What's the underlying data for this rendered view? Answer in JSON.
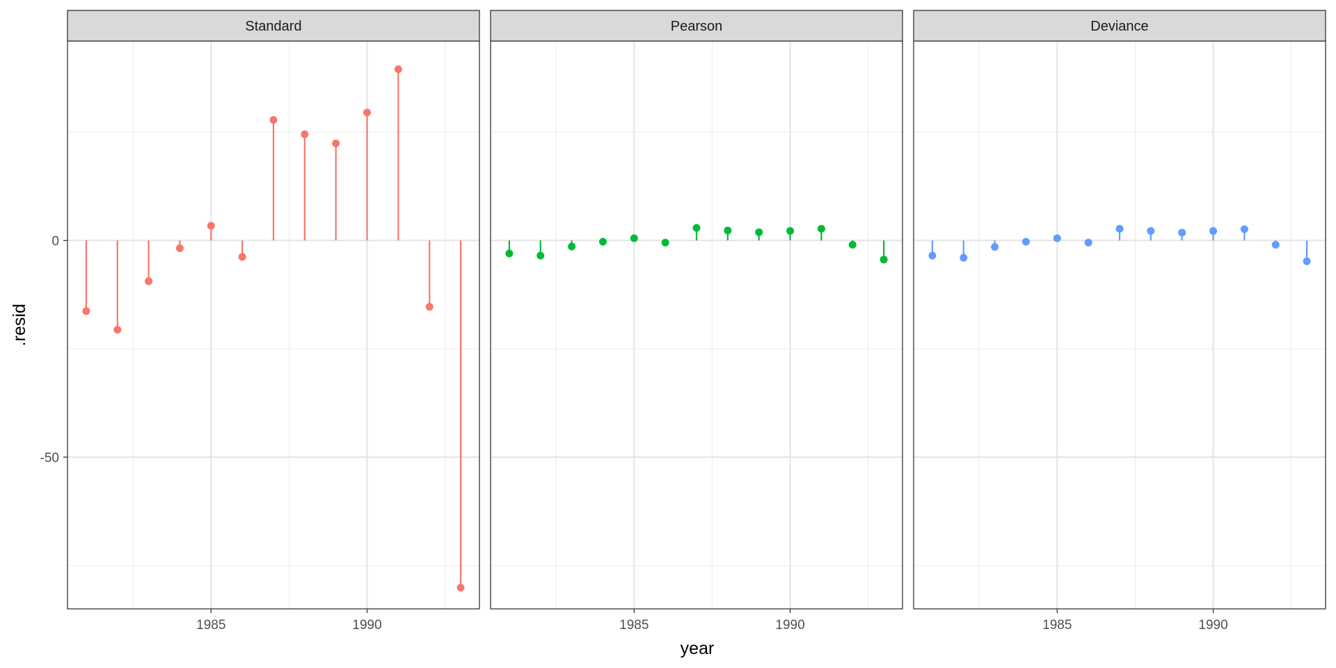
{
  "chart_data": {
    "type": "lollipop",
    "xlabel": "year",
    "ylabel": ".resid",
    "x_ticks": [
      1985,
      1990
    ],
    "y_ticks": [
      0,
      -50
    ],
    "ylim": [
      -85,
      46
    ],
    "xlim": [
      1980.4,
      1993.6
    ],
    "grid": true,
    "legend": "none",
    "facets": [
      {
        "name": "Standard",
        "color": "#F8766D",
        "x": [
          1981,
          1982,
          1983,
          1984,
          1985,
          1986,
          1987,
          1988,
          1989,
          1990,
          1991,
          1992,
          1993
        ],
        "values": [
          -16.3,
          -20.6,
          -9.4,
          -1.8,
          3.4,
          -3.8,
          27.8,
          24.5,
          22.4,
          29.5,
          39.5,
          -15.3,
          -80.1
        ]
      },
      {
        "name": "Pearson",
        "color": "#00BA38",
        "x": [
          1981,
          1982,
          1983,
          1984,
          1985,
          1986,
          1987,
          1988,
          1989,
          1990,
          1991,
          1992,
          1993
        ],
        "values": [
          -3.0,
          -3.5,
          -1.4,
          -0.3,
          0.5,
          -0.5,
          2.9,
          2.3,
          1.9,
          2.2,
          2.7,
          -1.0,
          -4.4
        ]
      },
      {
        "name": "Deviance",
        "color": "#619CFF",
        "x": [
          1981,
          1982,
          1983,
          1984,
          1985,
          1986,
          1987,
          1988,
          1989,
          1990,
          1991,
          1992,
          1993
        ],
        "values": [
          -3.5,
          -4.0,
          -1.5,
          -0.3,
          0.5,
          -0.5,
          2.7,
          2.2,
          1.8,
          2.2,
          2.6,
          -1.0,
          -4.8
        ]
      }
    ]
  }
}
